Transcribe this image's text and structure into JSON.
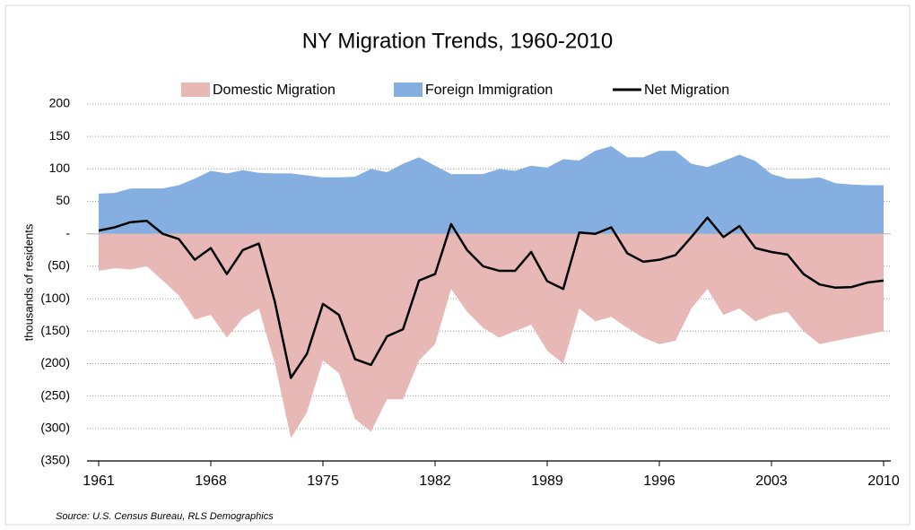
{
  "chart_data": {
    "type": "area",
    "title": "NY Migration Trends, 1960-2010",
    "y_label": "thousands of residents",
    "source": "Source: U.S. Census Bureau, RLS Demographics",
    "x": [
      1961,
      1962,
      1963,
      1964,
      1965,
      1966,
      1967,
      1968,
      1969,
      1970,
      1971,
      1972,
      1973,
      1974,
      1975,
      1976,
      1977,
      1978,
      1979,
      1980,
      1981,
      1982,
      1983,
      1984,
      1985,
      1986,
      1987,
      1988,
      1989,
      1990,
      1991,
      1992,
      1993,
      1994,
      1995,
      1996,
      1997,
      1998,
      1999,
      2000,
      2001,
      2002,
      2003,
      2004,
      2005,
      2006,
      2007,
      2008,
      2009,
      2010
    ],
    "xlim": [
      1961,
      2010
    ],
    "xticks": [
      1961,
      1968,
      1975,
      1982,
      1989,
      1996,
      2003,
      2010
    ],
    "ylim": [
      -350,
      200
    ],
    "yticks": [
      200,
      150,
      100,
      50,
      {
        "value": 0,
        "label": "-"
      },
      {
        "value": -50,
        "label": "(50)"
      },
      {
        "value": -100,
        "label": "(100)"
      },
      {
        "value": -150,
        "label": "(150)"
      },
      {
        "value": -200,
        "label": "(200)"
      },
      {
        "value": -250,
        "label": "(250)"
      },
      {
        "value": -300,
        "label": "(300)"
      },
      {
        "value": -350,
        "label": "(350)"
      }
    ],
    "grid": true,
    "legend": "top",
    "series": [
      {
        "name": "Domestic Migration",
        "color": "#e8b8b7",
        "type": "area",
        "values": [
          -57,
          -53,
          -55,
          -50,
          -72,
          -95,
          -132,
          -125,
          -160,
          -130,
          -115,
          -200,
          -315,
          -275,
          -195,
          -215,
          -285,
          -305,
          -255,
          -255,
          -195,
          -170,
          -85,
          -120,
          -145,
          -160,
          -150,
          -140,
          -180,
          -200,
          -115,
          -135,
          -128,
          -145,
          -160,
          -170,
          -165,
          -115,
          -85,
          -125,
          -115,
          -135,
          -125,
          -120,
          -150,
          -170,
          -165,
          -160,
          -155,
          -150
        ]
      },
      {
        "name": "Foreign Immigration",
        "color": "#86afe1",
        "type": "area",
        "values": [
          62,
          63,
          70,
          70,
          70,
          75,
          85,
          97,
          93,
          98,
          94,
          93,
          93,
          90,
          87,
          87,
          88,
          100,
          95,
          108,
          118,
          105,
          92,
          92,
          92,
          100,
          97,
          105,
          102,
          115,
          113,
          128,
          135,
          118,
          118,
          128,
          128,
          108,
          103,
          112,
          122,
          112,
          92,
          85,
          85,
          87,
          78,
          76,
          75,
          75
        ]
      },
      {
        "name": "Net Migration",
        "color": "#000000",
        "type": "line",
        "values": [
          5,
          10,
          18,
          20,
          0,
          -8,
          -40,
          -22,
          -62,
          -25,
          -15,
          -105,
          -222,
          -185,
          -108,
          -125,
          -193,
          -202,
          -158,
          -147,
          -72,
          -62,
          15,
          -25,
          -50,
          -57,
          -57,
          -28,
          -73,
          -85,
          2,
          0,
          10,
          -30,
          -43,
          -40,
          -33,
          -5,
          25,
          -5,
          12,
          -22,
          -28,
          -32,
          -62,
          -78,
          -83,
          -82,
          -75,
          -72
        ]
      }
    ]
  }
}
